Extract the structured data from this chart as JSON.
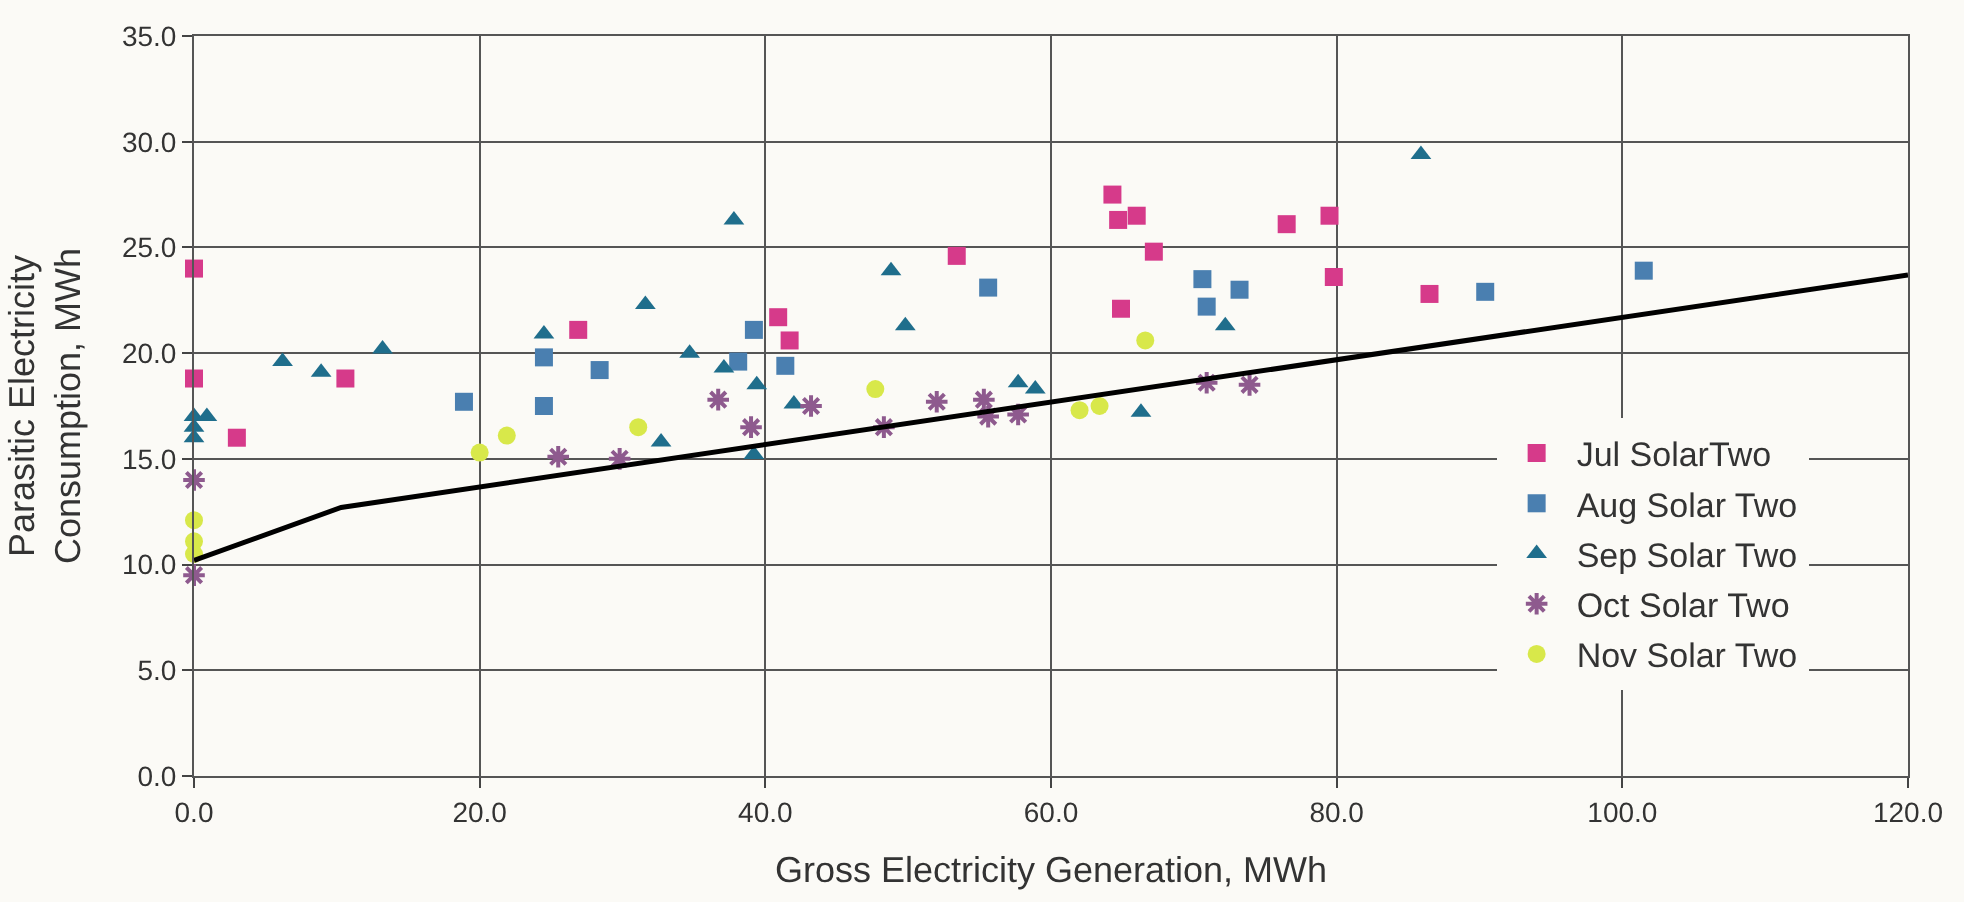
{
  "chart_data": {
    "type": "scatter",
    "xlabel": "Gross Electricity Generation, MWh",
    "ylabel": "Parasitic Electricity Consumption, MWh",
    "xlim": [
      0,
      120
    ],
    "ylim": [
      0,
      35
    ],
    "xticks": [
      {
        "value": 0,
        "label": "0.0"
      },
      {
        "value": 20,
        "label": "20.0"
      },
      {
        "value": 40,
        "label": "40.0"
      },
      {
        "value": 60,
        "label": "60.0"
      },
      {
        "value": 80,
        "label": "80.0"
      },
      {
        "value": 100,
        "label": "100.0"
      },
      {
        "value": 120,
        "label": "120.0"
      }
    ],
    "yticks": [
      {
        "value": 0,
        "label": "0.0"
      },
      {
        "value": 5,
        "label": "5.0"
      },
      {
        "value": 10,
        "label": "10.0"
      },
      {
        "value": 15,
        "label": "15.0"
      },
      {
        "value": 20,
        "label": "20.0"
      },
      {
        "value": 25,
        "label": "25.0"
      },
      {
        "value": 30,
        "label": "30.0"
      },
      {
        "value": 35,
        "label": "35.0"
      }
    ],
    "grid": true,
    "legend": "right",
    "series": [
      {
        "name": "Jul SolarTwo",
        "color": "#d63a8a",
        "marker": "square",
        "x": [
          0,
          0,
          3.0,
          10.6,
          26.9,
          40.9,
          41.7,
          53.4,
          64.3,
          64.7,
          66.0,
          67.2,
          64.9,
          76.5,
          79.5,
          79.8,
          86.5
        ],
        "values": [
          24.0,
          18.8,
          16.0,
          18.8,
          21.1,
          21.7,
          20.6,
          24.6,
          27.5,
          26.3,
          26.5,
          24.8,
          22.1,
          26.1,
          26.5,
          23.6,
          22.8
        ]
      },
      {
        "name": "Aug Solar Two",
        "color": "#4a7fb0",
        "marker": "square",
        "x": [
          18.9,
          24.5,
          24.5,
          28.4,
          39.2,
          38.1,
          41.4,
          55.6,
          70.6,
          70.9,
          73.2,
          90.4,
          101.5
        ],
        "values": [
          17.7,
          17.5,
          19.8,
          19.2,
          21.1,
          19.6,
          19.4,
          23.1,
          23.5,
          22.2,
          23.0,
          22.9,
          23.9
        ]
      },
      {
        "name": "Sep Solar Two",
        "color": "#1f6e8c",
        "marker": "triangle",
        "x": [
          0,
          0,
          0,
          0.9,
          6.2,
          8.9,
          13.2,
          24.5,
          31.6,
          37.8,
          34.7,
          37.1,
          39.4,
          39.2,
          32.7,
          48.8,
          49.8,
          42.0,
          57.7,
          58.9,
          66.3,
          72.2,
          85.9
        ],
        "values": [
          17.0,
          16.5,
          16.0,
          17.0,
          19.6,
          19.1,
          20.2,
          20.9,
          22.3,
          26.3,
          20.0,
          19.3,
          18.5,
          15.2,
          15.8,
          23.9,
          21.3,
          17.6,
          18.6,
          18.3,
          17.2,
          21.3,
          29.4
        ]
      },
      {
        "name": "Oct Solar Two",
        "color": "#8e5a8e",
        "marker": "cross",
        "x": [
          0,
          0,
          36.7,
          39.0,
          25.5,
          29.8,
          43.2,
          48.3,
          52.0,
          55.3,
          55.6,
          57.7,
          70.9,
          73.9
        ],
        "values": [
          14.0,
          9.5,
          17.8,
          16.5,
          15.1,
          15.0,
          17.5,
          16.5,
          17.7,
          17.8,
          17.0,
          17.1,
          18.6,
          18.5
        ]
      },
      {
        "name": "Nov Solar Two",
        "color": "#d8e84a",
        "marker": "circle",
        "x": [
          0,
          0,
          0,
          20.0,
          21.9,
          31.1,
          47.7,
          62.0,
          63.4,
          66.6
        ],
        "values": [
          12.1,
          11.1,
          10.5,
          15.3,
          16.1,
          16.5,
          18.3,
          17.3,
          17.5,
          20.6
        ]
      },
      {
        "type": "line",
        "color": "#000000",
        "marker": "none",
        "x": [
          0,
          10.3,
          120
        ],
        "values": [
          10.2,
          12.7,
          23.7
        ]
      }
    ]
  }
}
